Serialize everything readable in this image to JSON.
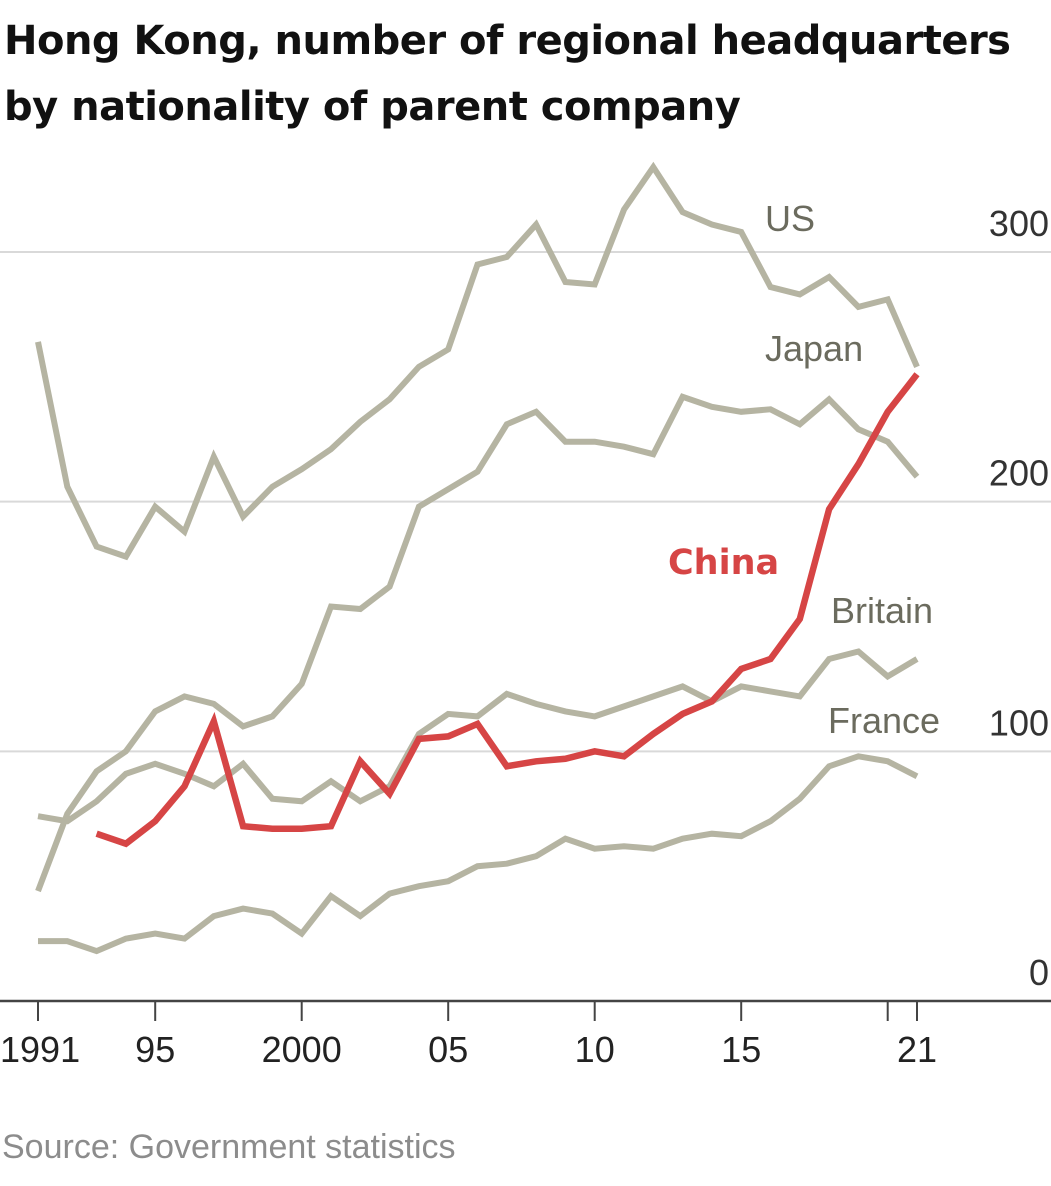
{
  "title_line1": "Hong Kong, number of regional headquarters",
  "title_line2": "by nationality of parent company",
  "source": "Source: Government statistics",
  "chart_data": {
    "type": "line",
    "title": "Hong Kong, number of regional headquarters by nationality of parent company",
    "x": [
      1991,
      1992,
      1993,
      1994,
      1995,
      1996,
      1997,
      1998,
      1999,
      2000,
      2001,
      2002,
      2003,
      2004,
      2005,
      2006,
      2007,
      2008,
      2009,
      2010,
      2011,
      2012,
      2013,
      2014,
      2015,
      2016,
      2017,
      2018,
      2019,
      2020,
      2021
    ],
    "xlim": [
      1991,
      2021
    ],
    "ylim": [
      0,
      300
    ],
    "y_axis_position": "right",
    "grid": "horizontal",
    "x_tick_values": [
      1991,
      1995,
      2000,
      2005,
      2010,
      2015,
      2021
    ],
    "x_tick_labels": [
      "1991",
      "95",
      "2000",
      "05",
      "10",
      "15",
      "21"
    ],
    "x_minor_ticks": [
      2020
    ],
    "y_tick_values": [
      0,
      100,
      200,
      300
    ],
    "y_tick_labels": [
      "0",
      "100",
      "200",
      "300"
    ],
    "series": [
      {
        "name": "US",
        "color": "#b5b4a2",
        "values": [
          264,
          206,
          182,
          178,
          198,
          188,
          218,
          194,
          206,
          213,
          221,
          232,
          241,
          254,
          261,
          295,
          298,
          311,
          288,
          287,
          317,
          334,
          316,
          311,
          308,
          286,
          283,
          290,
          278,
          281,
          254
        ]
      },
      {
        "name": "Japan",
        "color": "#b5b4a2",
        "values": [
          44,
          75,
          92,
          100,
          116,
          122,
          119,
          110,
          114,
          127,
          158,
          157,
          166,
          198,
          205,
          212,
          231,
          236,
          224,
          224,
          222,
          219,
          242,
          238,
          236,
          237,
          231,
          241,
          229,
          224,
          210
        ]
      },
      {
        "name": "Britain",
        "color": "#b5b4a2",
        "values": [
          74,
          72,
          80,
          91,
          95,
          91,
          86,
          95,
          81,
          80,
          88,
          80,
          86,
          107,
          115,
          114,
          123,
          119,
          116,
          114,
          118,
          122,
          126,
          120,
          126,
          124,
          122,
          137,
          140,
          130,
          137
        ]
      },
      {
        "name": "France",
        "color": "#b5b4a2",
        "values": [
          24,
          24,
          20,
          25,
          27,
          25,
          34,
          37,
          35,
          27,
          42,
          34,
          43,
          46,
          48,
          54,
          55,
          58,
          65,
          61,
          62,
          61,
          65,
          67,
          66,
          72,
          81,
          94,
          98,
          96,
          90
        ]
      },
      {
        "name": "China",
        "color": "#d64545",
        "values": [
          null,
          null,
          67,
          63,
          72,
          86,
          112,
          70,
          69,
          69,
          70,
          96,
          83,
          105,
          106,
          111,
          94,
          96,
          97,
          100,
          98,
          107,
          115,
          120,
          133,
          137,
          153,
          197,
          215,
          236,
          251
        ]
      }
    ]
  }
}
